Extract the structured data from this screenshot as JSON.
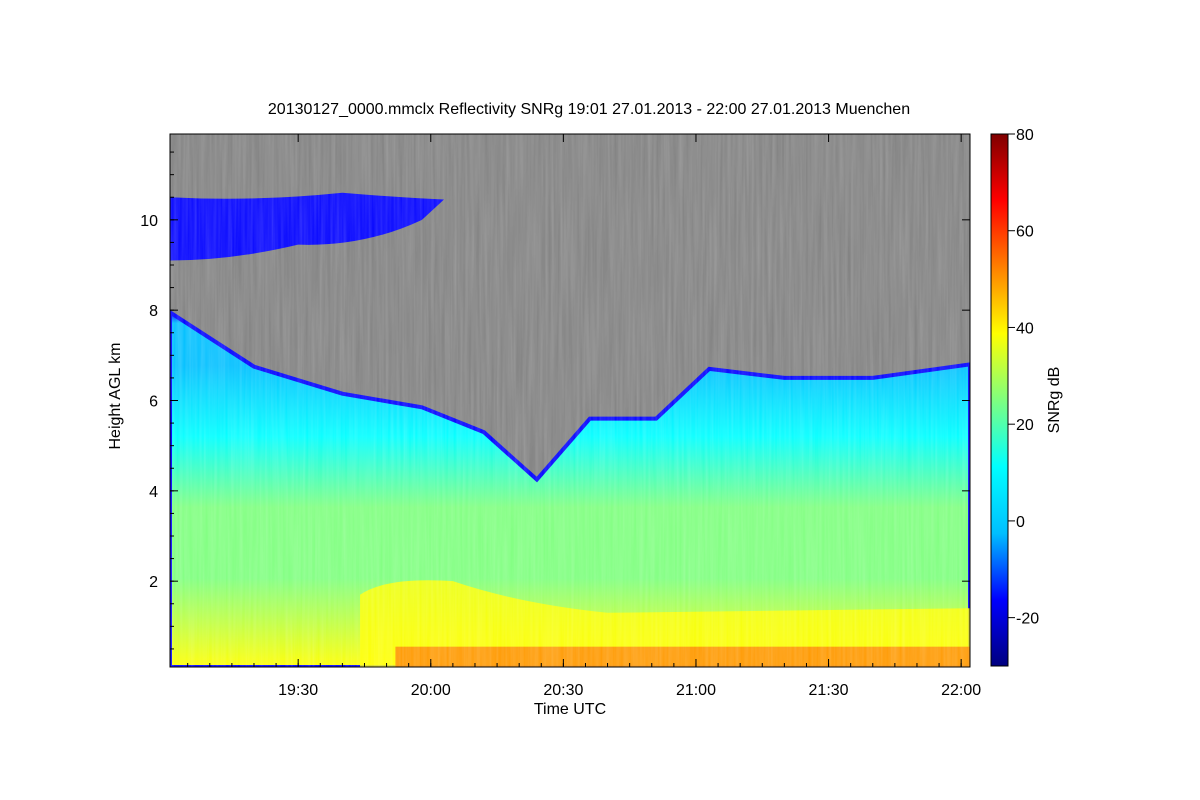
{
  "chart_data": {
    "type": "heatmap",
    "title": "20130127_0000.mmclx Reflectivity SNRg   19:01 27.01.2013 - 22:00 27.01.2013 Muenchen",
    "xlabel": "Time UTC",
    "ylabel": "Height AGL km",
    "colorbar_label": "SNRg dB",
    "x_range_min": [
      1141,
      1322
    ],
    "x_ticks": [
      {
        "label": "19:30",
        "min": 1170
      },
      {
        "label": "20:00",
        "min": 1200
      },
      {
        "label": "20:30",
        "min": 1230
      },
      {
        "label": "21:00",
        "min": 1260
      },
      {
        "label": "21:30",
        "min": 1290
      },
      {
        "label": "22:00",
        "min": 1320
      }
    ],
    "y_range": [
      0.1,
      11.9
    ],
    "y_ticks": [
      2,
      4,
      6,
      8,
      10
    ],
    "color_range": [
      -30,
      80
    ],
    "color_ticks": [
      -20,
      0,
      20,
      40,
      60,
      80
    ],
    "colormap": [
      "#00007f",
      "#0000ff",
      "#00bfff",
      "#00ffff",
      "#7fff7f",
      "#ffff00",
      "#ff7f00",
      "#ff0000",
      "#7f0000"
    ],
    "background_color": "#808080",
    "cloud_layers": [
      {
        "name": "cirrus",
        "bottom": 9.1,
        "top": 10.4,
        "x_end": 1203,
        "snr": -12
      },
      {
        "name": "main",
        "top_profile": [
          [
            1141,
            7.95
          ],
          [
            1160,
            6.75
          ],
          [
            1180,
            6.15
          ],
          [
            1198,
            5.85
          ],
          [
            1212,
            5.3
          ],
          [
            1224,
            4.25
          ],
          [
            1236,
            5.6
          ],
          [
            1251,
            5.6
          ],
          [
            1263,
            6.7
          ],
          [
            1280,
            6.5
          ],
          [
            1300,
            6.5
          ],
          [
            1322,
            6.8
          ]
        ]
      },
      {
        "name": "precipitation",
        "x_start": 1184,
        "top": 2.1,
        "snr": 45
      }
    ]
  }
}
